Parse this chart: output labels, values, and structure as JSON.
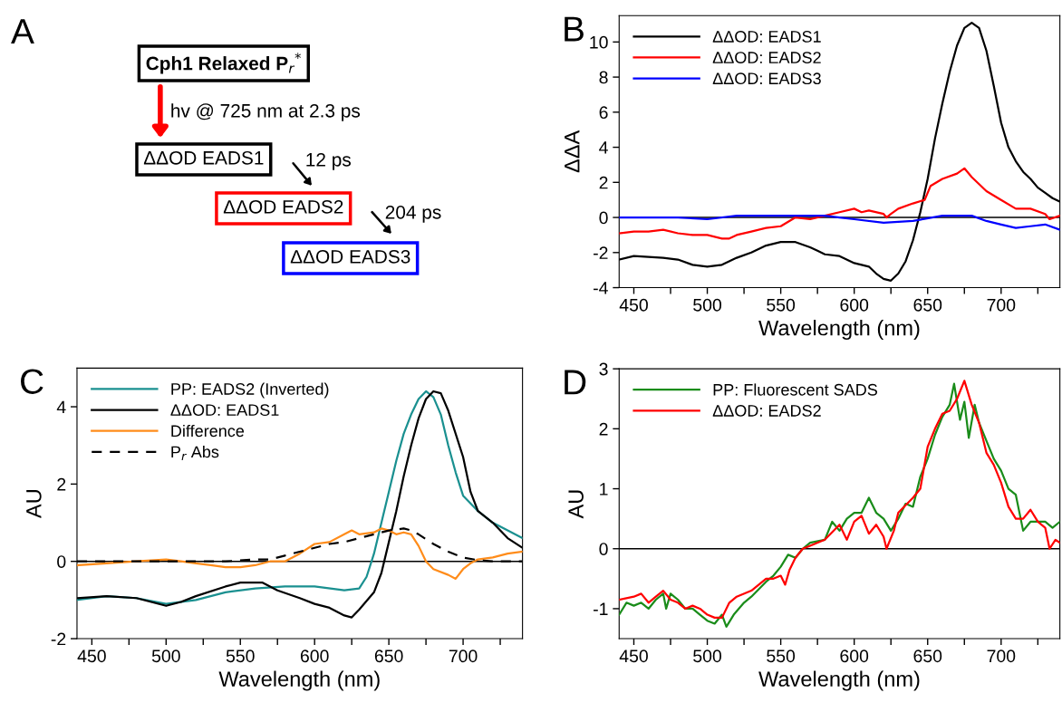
{
  "chart_data": [
    {
      "type": "other",
      "title": "A",
      "annotations": [
        "Cph1 Relaxed P$_{r}$$^{*}$",
        "hv @ 725 nm at 2.3 ps",
        "ΔΔOD EADS1",
        "12 ps",
        "ΔΔOD EADS2",
        "204 ps",
        "ΔΔOD EADS3"
      ]
    },
    {
      "type": "line",
      "title": "B",
      "xlabel": "Wavelength (nm)",
      "ylabel": "ΔΔA",
      "xlim": [
        440,
        740
      ],
      "ylim": [
        -4,
        11.5
      ],
      "xticks": [
        450,
        {
          "value": 475,
          "label": null
        },
        500,
        {
          "value": 525,
          "label": null
        },
        550,
        {
          "value": 575,
          "label": null
        },
        600,
        {
          "value": 625,
          "label": null
        },
        650,
        {
          "value": 675,
          "label": null
        },
        700,
        {
          "value": 725,
          "label": null
        }
      ],
      "yticks": [
        -4,
        -2,
        0,
        2,
        4,
        6,
        8,
        10
      ],
      "grid": false,
      "legend": "top left",
      "line_style": "solid",
      "marker": "none",
      "ref_lines": [
        {
          "axis": "y",
          "value": 0,
          "color": "#000000"
        }
      ],
      "series": [
        {
          "name": "ΔΔOD: EADS1",
          "color": "#000000",
          "x": [
            440,
            450,
            470,
            480,
            490,
            500,
            510,
            520,
            530,
            540,
            550,
            560,
            570,
            575,
            580,
            590,
            600,
            610,
            615,
            620,
            625,
            630,
            635,
            640,
            645,
            650,
            655,
            660,
            665,
            670,
            675,
            680,
            685,
            690,
            695,
            700,
            705,
            710,
            715,
            720,
            725,
            730,
            735,
            740
          ],
          "values": [
            -2.4,
            -2.2,
            -2.3,
            -2.4,
            -2.7,
            -2.8,
            -2.7,
            -2.3,
            -2.0,
            -1.6,
            -1.4,
            -1.4,
            -1.7,
            -1.9,
            -2.1,
            -2.2,
            -2.6,
            -2.8,
            -3.2,
            -3.5,
            -3.6,
            -3.2,
            -2.5,
            -1.3,
            0.3,
            2.2,
            4.5,
            6.5,
            8.3,
            9.8,
            10.8,
            11.1,
            10.8,
            9.5,
            7.5,
            5.4,
            4.0,
            3.2,
            2.6,
            2.2,
            1.7,
            1.4,
            1.1,
            0.9
          ]
        },
        {
          "name": "ΔΔOD: EADS2",
          "color": "#ff0000",
          "x": [
            440,
            450,
            460,
            470,
            480,
            490,
            500,
            510,
            515,
            520,
            530,
            540,
            550,
            560,
            570,
            580,
            590,
            600,
            605,
            610,
            620,
            622,
            625,
            630,
            640,
            648,
            652,
            660,
            670,
            675,
            680,
            690,
            700,
            710,
            720,
            730,
            733,
            740
          ],
          "values": [
            -0.9,
            -0.8,
            -0.8,
            -0.7,
            -0.9,
            -1.0,
            -1.0,
            -1.2,
            -1.2,
            -1.0,
            -0.8,
            -0.6,
            -0.5,
            0.0,
            -0.1,
            0.1,
            0.3,
            0.5,
            0.3,
            0.4,
            0.2,
            0.0,
            0.2,
            0.5,
            0.8,
            1.0,
            1.8,
            2.2,
            2.5,
            2.8,
            2.3,
            1.5,
            1.0,
            0.5,
            0.5,
            0.2,
            -0.1,
            0.1
          ]
        },
        {
          "name": "ΔΔOD: EADS3",
          "color": "#0000ff",
          "x": [
            440,
            460,
            480,
            500,
            520,
            540,
            560,
            580,
            590,
            600,
            620,
            640,
            660,
            680,
            690,
            700,
            710,
            720,
            730,
            740
          ],
          "values": [
            0.0,
            0.0,
            0.0,
            -0.1,
            0.1,
            0.1,
            0.1,
            0.1,
            0.0,
            -0.1,
            -0.3,
            -0.2,
            0.1,
            0.1,
            -0.2,
            -0.4,
            -0.6,
            -0.5,
            -0.4,
            -0.7
          ]
        }
      ]
    },
    {
      "type": "line",
      "title": "C",
      "xlabel": "Wavelength (nm)",
      "ylabel": "AU",
      "xlim": [
        440,
        740
      ],
      "ylim": [
        -2,
        5
      ],
      "xticks": [
        450,
        {
          "value": 475,
          "label": null
        },
        500,
        {
          "value": 525,
          "label": null
        },
        550,
        {
          "value": 575,
          "label": null
        },
        600,
        {
          "value": 625,
          "label": null
        },
        650,
        {
          "value": 675,
          "label": null
        },
        700,
        {
          "value": 725,
          "label": null
        }
      ],
      "yticks": [
        -2,
        0,
        2,
        4
      ],
      "grid": false,
      "legend": "top left",
      "marker": "none",
      "ref_lines": [
        {
          "axis": "y",
          "value": 0,
          "color": "#000000"
        }
      ],
      "series": [
        {
          "name": "PP: EADS2 (Inverted)",
          "color": "#1a9090",
          "line_style": "solid",
          "x": [
            440,
            460,
            480,
            500,
            520,
            540,
            560,
            580,
            600,
            620,
            630,
            635,
            640,
            645,
            650,
            655,
            660,
            665,
            670,
            675,
            680,
            685,
            690,
            695,
            700,
            710,
            720,
            730,
            740
          ],
          "values": [
            -1.0,
            -0.9,
            -0.95,
            -1.1,
            -1.0,
            -0.8,
            -0.7,
            -0.65,
            -0.65,
            -0.75,
            -0.7,
            -0.4,
            0.2,
            1.0,
            1.8,
            2.6,
            3.3,
            3.8,
            4.2,
            4.4,
            4.25,
            3.8,
            3.0,
            2.3,
            1.7,
            1.3,
            1.0,
            0.8,
            0.6
          ]
        },
        {
          "name": "ΔΔOD: EADS1",
          "color": "#000000",
          "line_style": "solid",
          "x": [
            440,
            460,
            480,
            500,
            510,
            520,
            540,
            550,
            565,
            575,
            590,
            600,
            610,
            620,
            625,
            630,
            640,
            645,
            650,
            655,
            660,
            665,
            670,
            675,
            680,
            685,
            690,
            700,
            705,
            710,
            720,
            730,
            740
          ],
          "values": [
            -0.95,
            -0.9,
            -0.95,
            -1.15,
            -1.05,
            -0.9,
            -0.65,
            -0.55,
            -0.55,
            -0.75,
            -0.95,
            -1.1,
            -1.2,
            -1.4,
            -1.45,
            -1.25,
            -0.8,
            -0.3,
            0.5,
            1.3,
            2.2,
            3.0,
            3.7,
            4.2,
            4.4,
            4.35,
            3.9,
            2.7,
            1.8,
            1.3,
            1.0,
            0.6,
            0.35
          ]
        },
        {
          "name": "Difference",
          "color": "#ff8c1a",
          "line_style": "solid",
          "x": [
            440,
            460,
            480,
            500,
            510,
            520,
            530,
            540,
            550,
            560,
            570,
            580,
            585,
            590,
            600,
            610,
            620,
            625,
            630,
            640,
            645,
            650,
            655,
            660,
            665,
            670,
            675,
            680,
            690,
            695,
            700,
            705,
            710,
            720,
            730,
            740
          ],
          "values": [
            -0.1,
            -0.05,
            0.0,
            0.05,
            0.0,
            -0.05,
            -0.1,
            -0.15,
            -0.15,
            -0.1,
            0.0,
            0.0,
            0.1,
            0.2,
            0.45,
            0.5,
            0.7,
            0.8,
            0.7,
            0.75,
            0.85,
            0.8,
            0.7,
            0.75,
            0.7,
            0.4,
            0.0,
            -0.2,
            -0.35,
            -0.45,
            -0.2,
            -0.05,
            0.05,
            0.1,
            0.2,
            0.25
          ]
        },
        {
          "name": "P$_{r}$ Abs",
          "color": "#000000",
          "line_style": "dashed",
          "x": [
            440,
            500,
            540,
            560,
            570,
            580,
            590,
            600,
            610,
            620,
            630,
            640,
            650,
            660,
            665,
            670,
            680,
            690,
            700,
            710,
            720,
            740
          ],
          "values": [
            0.0,
            0.0,
            0.0,
            0.05,
            0.05,
            0.15,
            0.25,
            0.35,
            0.45,
            0.5,
            0.6,
            0.7,
            0.8,
            0.85,
            0.8,
            0.7,
            0.45,
            0.25,
            0.1,
            0.03,
            0.0,
            0.0
          ]
        }
      ]
    },
    {
      "type": "line",
      "title": "D",
      "xlabel": "Wavelength (nm)",
      "ylabel": "AU",
      "xlim": [
        440,
        740
      ],
      "ylim": [
        -1.5,
        3
      ],
      "xticks": [
        450,
        {
          "value": 475,
          "label": null
        },
        500,
        {
          "value": 525,
          "label": null
        },
        550,
        {
          "value": 575,
          "label": null
        },
        600,
        {
          "value": 625,
          "label": null
        },
        650,
        {
          "value": 675,
          "label": null
        },
        700,
        {
          "value": 725,
          "label": null
        }
      ],
      "yticks": [
        -1,
        0,
        1,
        2,
        3
      ],
      "grid": false,
      "legend": "top left",
      "line_style": "solid",
      "marker": "none",
      "ref_lines": [
        {
          "axis": "y",
          "value": 0,
          "color": "#000000"
        }
      ],
      "series": [
        {
          "name": "PP: Fluorescent SADS",
          "color": "#1a8c1a",
          "x": [
            440,
            445,
            450,
            455,
            460,
            465,
            470,
            472,
            475,
            480,
            485,
            490,
            495,
            500,
            505,
            510,
            513,
            518,
            525,
            530,
            540,
            545,
            550,
            555,
            560,
            565,
            570,
            580,
            585,
            590,
            595,
            600,
            605,
            610,
            615,
            620,
            625,
            630,
            635,
            640,
            645,
            650,
            655,
            660,
            665,
            668,
            672,
            675,
            678,
            682,
            685,
            690,
            695,
            700,
            705,
            710,
            715,
            720,
            730,
            735,
            740
          ],
          "values": [
            -1.1,
            -0.9,
            -0.95,
            -0.9,
            -1.0,
            -0.85,
            -0.75,
            -1.0,
            -0.75,
            -0.85,
            -1.0,
            -1.0,
            -1.1,
            -1.2,
            -1.25,
            -1.1,
            -1.3,
            -1.1,
            -0.9,
            -0.8,
            -0.55,
            -0.45,
            -0.3,
            -0.1,
            -0.15,
            0.0,
            0.1,
            0.15,
            0.45,
            0.3,
            0.5,
            0.6,
            0.6,
            0.85,
            0.6,
            0.5,
            0.3,
            0.5,
            0.75,
            0.7,
            1.2,
            1.5,
            1.9,
            2.2,
            2.4,
            2.75,
            2.15,
            2.45,
            1.85,
            2.4,
            2.1,
            1.8,
            1.5,
            1.3,
            1.0,
            0.9,
            0.3,
            0.45,
            0.45,
            0.35,
            0.45
          ]
        },
        {
          "name": "ΔΔOD: EADS2",
          "color": "#ff0000",
          "x": [
            440,
            450,
            455,
            460,
            465,
            470,
            475,
            480,
            485,
            490,
            495,
            500,
            505,
            510,
            515,
            520,
            530,
            540,
            545,
            550,
            553,
            556,
            560,
            565,
            570,
            580,
            590,
            595,
            600,
            605,
            610,
            615,
            620,
            622,
            627,
            630,
            640,
            645,
            650,
            655,
            660,
            665,
            670,
            675,
            680,
            685,
            690,
            695,
            700,
            705,
            710,
            715,
            720,
            725,
            730,
            733,
            737,
            740
          ],
          "values": [
            -0.85,
            -0.8,
            -0.75,
            -0.9,
            -0.8,
            -0.7,
            -0.85,
            -0.9,
            -1.0,
            -0.95,
            -1.0,
            -1.1,
            -1.15,
            -1.15,
            -0.9,
            -0.8,
            -0.7,
            -0.5,
            -0.5,
            -0.45,
            -0.6,
            -0.35,
            -0.15,
            0.0,
            0.05,
            0.15,
            0.4,
            0.15,
            0.45,
            0.55,
            0.25,
            0.4,
            0.2,
            0.0,
            0.3,
            0.6,
            0.85,
            1.0,
            1.7,
            2.0,
            2.25,
            2.3,
            2.5,
            2.8,
            2.4,
            2.1,
            1.6,
            1.4,
            1.1,
            0.7,
            0.5,
            0.5,
            0.65,
            0.45,
            0.35,
            0.0,
            0.15,
            0.1
          ]
        }
      ]
    }
  ]
}
